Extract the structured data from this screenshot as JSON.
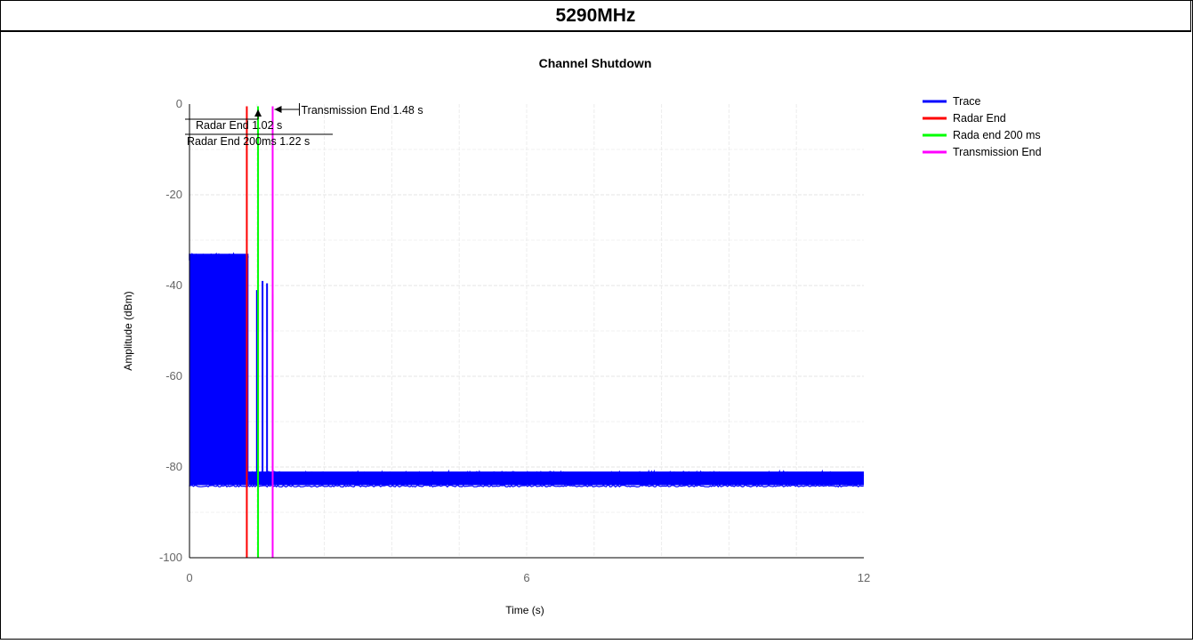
{
  "header": {
    "title": "5290MHz"
  },
  "chart_data": {
    "type": "line",
    "title": "Channel Shutdown",
    "xlabel": "Time (s)",
    "ylabel": "Amplitude (dBm)",
    "xlim": [
      0,
      12
    ],
    "ylim": [
      -100,
      0
    ],
    "xticks": [
      0,
      6,
      12
    ],
    "yticks": [
      0,
      -20,
      -40,
      -60,
      -80,
      -100
    ],
    "grid": true,
    "legend_position": "top-right",
    "series": [
      {
        "name": "Trace",
        "color": "#0000ff",
        "segments": [
          {
            "x_start": 0.0,
            "x_end": 1.05,
            "y_low": -84,
            "y_high": -33,
            "peak": -31.5
          },
          {
            "x_start": 1.05,
            "x_end": 12.0,
            "y_low": -84,
            "y_high": -81,
            "peak": -79
          }
        ],
        "bursts": [
          {
            "x": 1.2,
            "y": -41
          },
          {
            "x": 1.3,
            "y": -39
          },
          {
            "x": 1.38,
            "y": -39.5
          },
          {
            "x": 1.48,
            "y": -42
          }
        ]
      },
      {
        "name": "Radar End",
        "color": "#ff0000",
        "x": 1.02
      },
      {
        "name": "Rada end 200 ms",
        "color": "#00ff00",
        "x": 1.22
      },
      {
        "name": "Transmission End",
        "color": "#ff00ff",
        "x": 1.48
      }
    ],
    "annotations": [
      {
        "text": "Transmission End 1.48 s"
      },
      {
        "text": "Radar End 1.02 s"
      },
      {
        "text": "Radar End 200ms 1.22 s"
      }
    ]
  }
}
